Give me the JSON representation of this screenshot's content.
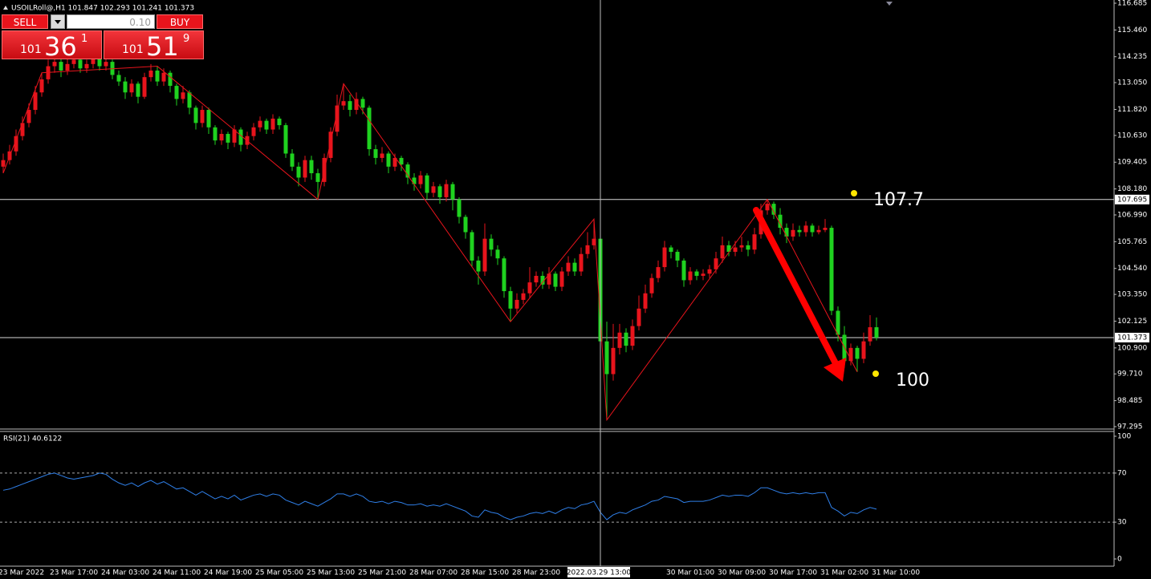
{
  "chart_data": [
    {
      "type": "candlestick",
      "title": "USOILRoll@,H1 101.847 102.293 101.241 101.373",
      "categories": [
        "23 Mar 2022",
        null,
        null,
        null,
        null,
        null,
        null,
        null,
        "23 Mar 17:00",
        null,
        null,
        null,
        null,
        null,
        null,
        null,
        "24 Mar 03:00",
        null,
        null,
        null,
        null,
        null,
        null,
        null,
        "24 Mar 11:00",
        null,
        null,
        null,
        null,
        null,
        null,
        null,
        "24 Mar 19:00",
        null,
        null,
        null,
        null,
        null,
        null,
        null,
        "25 Mar 05:00",
        null,
        null,
        null,
        null,
        null,
        null,
        null,
        "25 Mar 13:00",
        null,
        null,
        null,
        null,
        null,
        null,
        null,
        "25 Mar 21:00",
        null,
        null,
        null,
        null,
        null,
        null,
        null,
        "28 Mar 07:00",
        null,
        null,
        null,
        null,
        null,
        null,
        null,
        "28 Mar 15:00",
        null,
        null,
        null,
        null,
        null,
        null,
        null,
        "28 Mar 23:00",
        null,
        null,
        null,
        null,
        null,
        null,
        null,
        null,
        null,
        null,
        null,
        null,
        null,
        null,
        null,
        null,
        null,
        null,
        null,
        null,
        null,
        null,
        null,
        "30 Mar 01:00",
        null,
        null,
        null,
        null,
        null,
        null,
        null,
        "30 Mar 09:00",
        null,
        null,
        null,
        null,
        null,
        null,
        null,
        "30 Mar 17:00",
        null,
        null,
        null,
        null,
        null,
        null,
        null,
        "31 Mar 02:00",
        null,
        null,
        null,
        null,
        null,
        null,
        null,
        "31 Mar 10:00"
      ],
      "open": [
        109.2,
        109.5,
        109.9,
        110.6,
        111.2,
        111.8,
        112.6,
        113.2,
        113.8,
        114.0,
        113.6,
        113.9,
        114.1,
        113.7,
        113.9,
        114.2,
        113.8,
        114.0,
        113.4,
        113.1,
        112.6,
        113.0,
        112.4,
        113.3,
        113.6,
        113.1,
        113.5,
        112.9,
        112.3,
        112.6,
        111.9,
        111.2,
        111.8,
        111.0,
        110.4,
        110.7,
        110.3,
        110.9,
        110.2,
        110.6,
        111.0,
        111.3,
        110.9,
        111.4,
        111.1,
        109.8,
        109.2,
        108.7,
        109.5,
        108.9,
        108.5,
        109.6,
        110.8,
        112.0,
        112.2,
        111.8,
        112.3,
        111.9,
        110.0,
        109.6,
        109.8,
        109.2,
        109.6,
        109.3,
        108.7,
        108.4,
        108.8,
        108.0,
        108.3,
        107.8,
        108.4,
        107.7,
        106.9,
        106.2,
        104.9,
        104.4,
        105.9,
        105.4,
        105.0,
        103.5,
        102.7,
        103.1,
        103.4,
        103.9,
        104.2,
        103.8,
        104.3,
        103.7,
        104.4,
        104.8,
        104.4,
        105.2,
        105.6,
        105.9,
        101.2,
        99.7,
        100.9,
        101.6,
        101.0,
        101.9,
        102.7,
        103.4,
        104.1,
        104.6,
        105.5,
        105.3,
        104.9,
        104.0,
        104.4,
        104.2,
        104.3,
        104.5,
        105.0,
        105.6,
        105.3,
        105.5,
        105.6,
        105.4,
        106.1,
        107.2,
        107.5,
        107.0,
        106.4,
        106.0,
        106.3,
        106.2,
        106.5,
        106.2,
        106.3,
        106.4,
        102.6,
        101.5,
        100.3,
        100.9,
        100.4,
        101.2,
        101.847
      ],
      "high": [
        109.8,
        110.2,
        110.9,
        111.5,
        112.1,
        112.9,
        113.5,
        114.1,
        114.3,
        114.2,
        114.2,
        114.4,
        114.3,
        114.1,
        114.5,
        114.4,
        114.2,
        114.1,
        113.6,
        113.3,
        113.2,
        113.1,
        113.5,
        113.9,
        113.8,
        113.7,
        113.6,
        113.0,
        112.9,
        112.7,
        112.0,
        112.0,
        111.9,
        111.1,
        110.9,
        110.8,
        111.1,
        111.0,
        110.8,
        111.2,
        111.5,
        111.4,
        111.6,
        111.5,
        111.2,
        110.0,
        109.4,
        109.7,
        109.7,
        109.1,
        109.8,
        111.0,
        112.5,
        113.0,
        112.5,
        112.6,
        112.4,
        112.0,
        110.2,
        110.1,
        109.9,
        109.8,
        109.7,
        109.4,
        108.9,
        109.0,
        108.9,
        108.5,
        108.4,
        108.6,
        108.5,
        107.8,
        107.0,
        106.3,
        105.1,
        106.6,
        106.1,
        105.6,
        105.1,
        103.7,
        103.4,
        103.6,
        104.6,
        104.4,
        104.4,
        104.6,
        104.4,
        104.6,
        105.1,
        105.0,
        105.5,
        106.2,
        106.8,
        106.7,
        102.1,
        102.0,
        102.0,
        101.8,
        102.2,
        103.3,
        103.8,
        104.3,
        104.9,
        105.8,
        105.6,
        105.4,
        105.0,
        104.6,
        104.5,
        104.5,
        104.7,
        105.3,
        106.0,
        105.8,
        105.8,
        106.0,
        105.8,
        106.4,
        107.5,
        107.7,
        107.6,
        107.3,
        106.6,
        106.6,
        106.5,
        106.7,
        106.6,
        106.5,
        106.8,
        106.5,
        102.8,
        101.9,
        101.1,
        101.0,
        101.6,
        102.4,
        102.293
      ],
      "low": [
        108.9,
        109.3,
        109.7,
        110.4,
        111.0,
        111.6,
        112.4,
        113.0,
        113.5,
        113.3,
        113.4,
        113.7,
        113.5,
        113.5,
        113.7,
        113.6,
        113.6,
        113.2,
        112.9,
        112.3,
        112.4,
        112.1,
        112.3,
        113.1,
        112.9,
        112.9,
        112.6,
        112.0,
        112.1,
        111.6,
        110.9,
        111.0,
        110.7,
        110.2,
        110.2,
        110.0,
        110.1,
        109.9,
        110.0,
        110.4,
        110.8,
        110.7,
        110.7,
        110.9,
        109.6,
        109.0,
        108.3,
        108.5,
        108.6,
        107.7,
        108.3,
        109.4,
        110.6,
        111.8,
        111.5,
        111.6,
        111.6,
        109.7,
        109.3,
        109.4,
        108.9,
        109.0,
        109.0,
        108.4,
        108.1,
        108.2,
        107.7,
        107.8,
        107.5,
        107.6,
        107.2,
        106.6,
        105.9,
        104.6,
        103.8,
        104.2,
        105.1,
        104.7,
        103.2,
        102.1,
        102.5,
        102.9,
        103.2,
        103.7,
        103.6,
        103.6,
        103.5,
        103.5,
        104.2,
        104.2,
        104.2,
        105.0,
        105.4,
        101.0,
        97.6,
        99.4,
        100.6,
        100.7,
        100.8,
        101.7,
        102.5,
        103.2,
        103.9,
        104.4,
        105.0,
        104.6,
        103.7,
        103.8,
        104.0,
        104.0,
        104.1,
        104.3,
        104.8,
        105.1,
        105.1,
        105.3,
        105.1,
        105.2,
        105.9,
        107.0,
        106.8,
        106.1,
        105.7,
        105.8,
        106.0,
        106.0,
        106.0,
        106.1,
        106.2,
        102.4,
        101.2,
        100.0,
        100.1,
        99.8,
        100.2,
        101.0,
        101.241
      ],
      "close": [
        109.5,
        109.9,
        110.6,
        111.2,
        111.8,
        112.6,
        113.2,
        113.8,
        114.0,
        113.6,
        113.9,
        114.1,
        113.7,
        113.9,
        114.2,
        113.8,
        114.0,
        113.4,
        113.1,
        112.6,
        113.0,
        112.4,
        113.3,
        113.6,
        113.1,
        113.5,
        112.9,
        112.3,
        112.6,
        111.9,
        111.2,
        111.8,
        111.0,
        110.4,
        110.7,
        110.3,
        110.9,
        110.2,
        110.6,
        111.0,
        111.3,
        110.9,
        111.4,
        111.1,
        109.8,
        109.2,
        108.7,
        109.5,
        108.9,
        108.5,
        109.6,
        110.8,
        112.0,
        112.2,
        111.8,
        112.3,
        111.9,
        110.0,
        109.6,
        109.8,
        109.2,
        109.6,
        109.3,
        108.7,
        108.4,
        108.8,
        108.0,
        108.3,
        107.8,
        108.4,
        107.7,
        106.9,
        106.2,
        104.9,
        104.4,
        105.9,
        105.4,
        105.0,
        103.5,
        102.7,
        103.1,
        103.4,
        103.9,
        104.2,
        103.8,
        104.3,
        103.7,
        104.4,
        104.8,
        104.4,
        105.2,
        105.6,
        105.9,
        101.2,
        99.7,
        100.9,
        101.6,
        101.0,
        101.9,
        102.7,
        103.4,
        104.1,
        104.6,
        105.5,
        105.3,
        104.9,
        104.0,
        104.4,
        104.2,
        104.3,
        104.5,
        105.0,
        105.6,
        105.3,
        105.5,
        105.6,
        105.4,
        106.1,
        107.2,
        107.5,
        107.0,
        106.4,
        106.0,
        106.3,
        106.2,
        106.5,
        106.2,
        106.3,
        106.4,
        102.6,
        101.5,
        100.3,
        100.9,
        100.4,
        101.2,
        101.847,
        101.373
      ],
      "up_color": "#e8141c",
      "down_color": "#1fd21f",
      "zigzag_color": "#e8141c",
      "ylim": [
        97.295,
        116.685
      ],
      "yticks": [
        {
          "value": 97.295,
          "label": "97.295"
        },
        {
          "value": 98.485,
          "label": "98.485"
        },
        {
          "value": 99.71,
          "label": "99.710"
        },
        {
          "value": 100.9,
          "label": "100.900"
        },
        {
          "value": 102.125,
          "label": "102.125"
        },
        {
          "value": 103.35,
          "label": "103.350"
        },
        {
          "value": 104.54,
          "label": "104.540"
        },
        {
          "value": 105.765,
          "label": "105.765"
        },
        {
          "value": 106.99,
          "label": "106.990"
        },
        {
          "value": 108.18,
          "label": "108.180"
        },
        {
          "value": 109.405,
          "label": "109.405"
        },
        {
          "value": 110.63,
          "label": "110.630"
        },
        {
          "value": 111.82,
          "label": "111.820"
        },
        {
          "value": 113.05,
          "label": "113.050"
        },
        {
          "value": 114.235,
          "label": "114.235"
        },
        {
          "value": 115.46,
          "label": "115.460"
        },
        {
          "value": 116.685,
          "label": "116.685"
        }
      ],
      "hlines": [
        107.695,
        101.373
      ],
      "annotations": [
        "107.7",
        "100"
      ],
      "crosshair_label": "2022.03.29 13:00"
    },
    {
      "type": "line",
      "title": "RSI(21) 40.6122",
      "color": "#2f7fe8",
      "values": [
        56,
        57,
        59,
        61,
        63,
        65,
        67,
        69,
        70,
        68,
        66,
        65,
        66,
        67,
        68,
        70,
        69,
        65,
        62,
        60,
        62,
        59,
        62,
        64,
        61,
        63,
        60,
        57,
        58,
        55,
        52,
        55,
        52,
        49,
        51,
        49,
        52,
        48,
        50,
        52,
        53,
        51,
        53,
        52,
        48,
        46,
        44,
        47,
        45,
        43,
        46,
        49,
        53,
        53,
        51,
        53,
        51,
        47,
        46,
        47,
        45,
        47,
        46,
        44,
        44,
        45,
        43,
        44,
        43,
        45,
        43,
        41,
        39,
        35,
        34,
        40,
        38,
        37,
        34,
        32,
        34,
        35,
        37,
        38,
        37,
        39,
        37,
        40,
        42,
        41,
        44,
        45,
        47,
        38,
        32,
        36,
        38,
        37,
        40,
        42,
        44,
        47,
        48,
        51,
        50,
        49,
        46,
        47,
        47,
        47,
        48,
        50,
        52,
        51,
        52,
        52,
        51,
        54,
        58,
        58,
        56,
        54,
        53,
        54,
        53,
        54,
        53,
        54,
        54,
        42,
        39,
        35,
        38,
        37,
        40,
        42,
        40.6122
      ],
      "ylim": [
        0,
        100
      ],
      "yticks": [
        0,
        30,
        70,
        100
      ]
    }
  ],
  "trade_panel": {
    "sell": "SELL",
    "lot": "0.10",
    "buy": "BUY",
    "sell_price": {
      "big_figure": "101",
      "pips": "36",
      "point": "1"
    },
    "buy_price": {
      "big_figure": "101",
      "pips": "51",
      "point": "9"
    }
  }
}
